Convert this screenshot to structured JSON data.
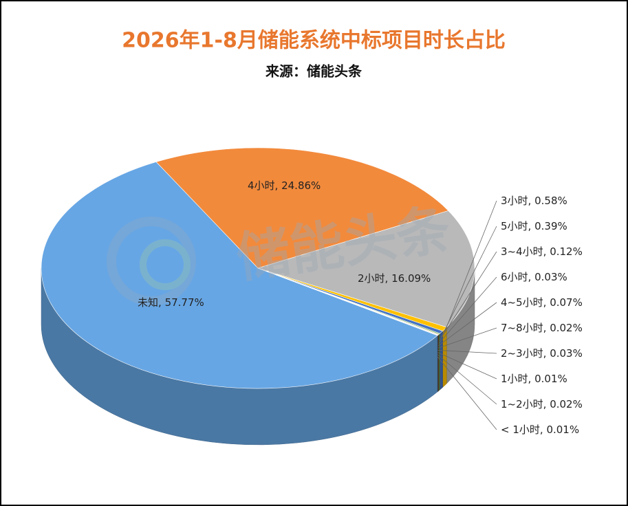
{
  "chart_data": {
    "type": "pie3d",
    "title": "2026年1-8月储能系统中标项目时长占比",
    "subtitle": "来源：储能头条",
    "watermark": "储能头条",
    "categories": [
      "未知",
      "4小时",
      "2小时",
      "3小时",
      "5小时",
      "3~4小时",
      "6小时",
      "4~5小时",
      "7~8小时",
      "2~3小时",
      "1小时",
      "1~2小时",
      "< 1小时"
    ],
    "values": [
      57.77,
      24.86,
      16.09,
      0.58,
      0.39,
      0.12,
      0.03,
      0.07,
      0.02,
      0.03,
      0.01,
      0.02,
      0.01
    ],
    "value_labels": [
      "57.77%",
      "24.86%",
      "16.09%",
      "0.58%",
      "0.39%",
      "0.12%",
      "0.03%",
      "0.07%",
      "0.02%",
      "0.03%",
      "0.01%",
      "0.02%",
      "0.01%"
    ],
    "colors": [
      "#67a6e4",
      "#f28a3c",
      "#b9b9b9",
      "#ffc000",
      "#4472c4",
      "#70ad47",
      "#255e91",
      "#9e480e",
      "#636363",
      "#997300",
      "#264478",
      "#43682b",
      "#698ed0"
    ]
  }
}
